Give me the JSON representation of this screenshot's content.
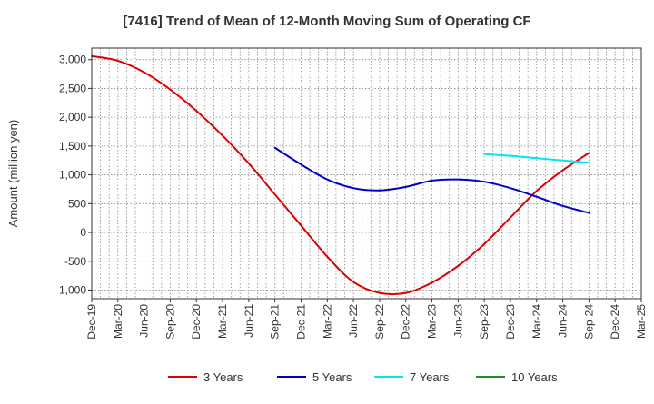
{
  "chart_data": {
    "type": "line",
    "title": "[7416]  Trend of Mean of 12-Month Moving Sum of Operating CF",
    "xlabel": "",
    "ylabel": "Amount (million yen)",
    "ylim": [
      -1150,
      3200
    ],
    "yticks": [
      3000,
      2500,
      2000,
      1500,
      1000,
      500,
      0,
      -500,
      -1000
    ],
    "ytick_labels": [
      "3,000",
      "2,500",
      "2,000",
      "1,500",
      "1,000",
      "500",
      "0",
      "-500",
      "-1,000"
    ],
    "grid": true,
    "legend_position": "bottom",
    "categories": [
      "Dec-19",
      "Mar-20",
      "Jun-20",
      "Sep-20",
      "Dec-20",
      "Mar-21",
      "Jun-21",
      "Sep-21",
      "Dec-21",
      "Mar-22",
      "Jun-22",
      "Sep-22",
      "Dec-22",
      "Mar-23",
      "Jun-23",
      "Sep-23",
      "Dec-23",
      "Mar-24",
      "Jun-24",
      "Sep-24",
      "Dec-24",
      "Mar-25"
    ],
    "series": [
      {
        "name": "3 Years",
        "color": "#dd0000",
        "values": [
          3060,
          2980,
          2780,
          2480,
          2110,
          1680,
          1200,
          660,
          120,
          -420,
          -860,
          -1050,
          -1050,
          -870,
          -580,
          -200,
          260,
          720,
          1080,
          1380,
          null,
          null
        ]
      },
      {
        "name": "5 Years",
        "color": "#0000cc",
        "values": [
          null,
          null,
          null,
          null,
          null,
          null,
          null,
          1470,
          1180,
          920,
          770,
          730,
          790,
          900,
          920,
          880,
          770,
          620,
          460,
          340,
          null,
          null
        ]
      },
      {
        "name": "7 Years",
        "color": "#00e5ee",
        "values": [
          null,
          null,
          null,
          null,
          null,
          null,
          null,
          null,
          null,
          null,
          null,
          null,
          null,
          null,
          null,
          1360,
          1330,
          1290,
          1250,
          1210,
          null,
          null
        ]
      },
      {
        "name": "10 Years",
        "color": "#228b22",
        "values": [
          null,
          null,
          null,
          null,
          null,
          null,
          null,
          null,
          null,
          null,
          null,
          null,
          null,
          null,
          null,
          null,
          null,
          null,
          null,
          null,
          null,
          null
        ]
      }
    ]
  }
}
